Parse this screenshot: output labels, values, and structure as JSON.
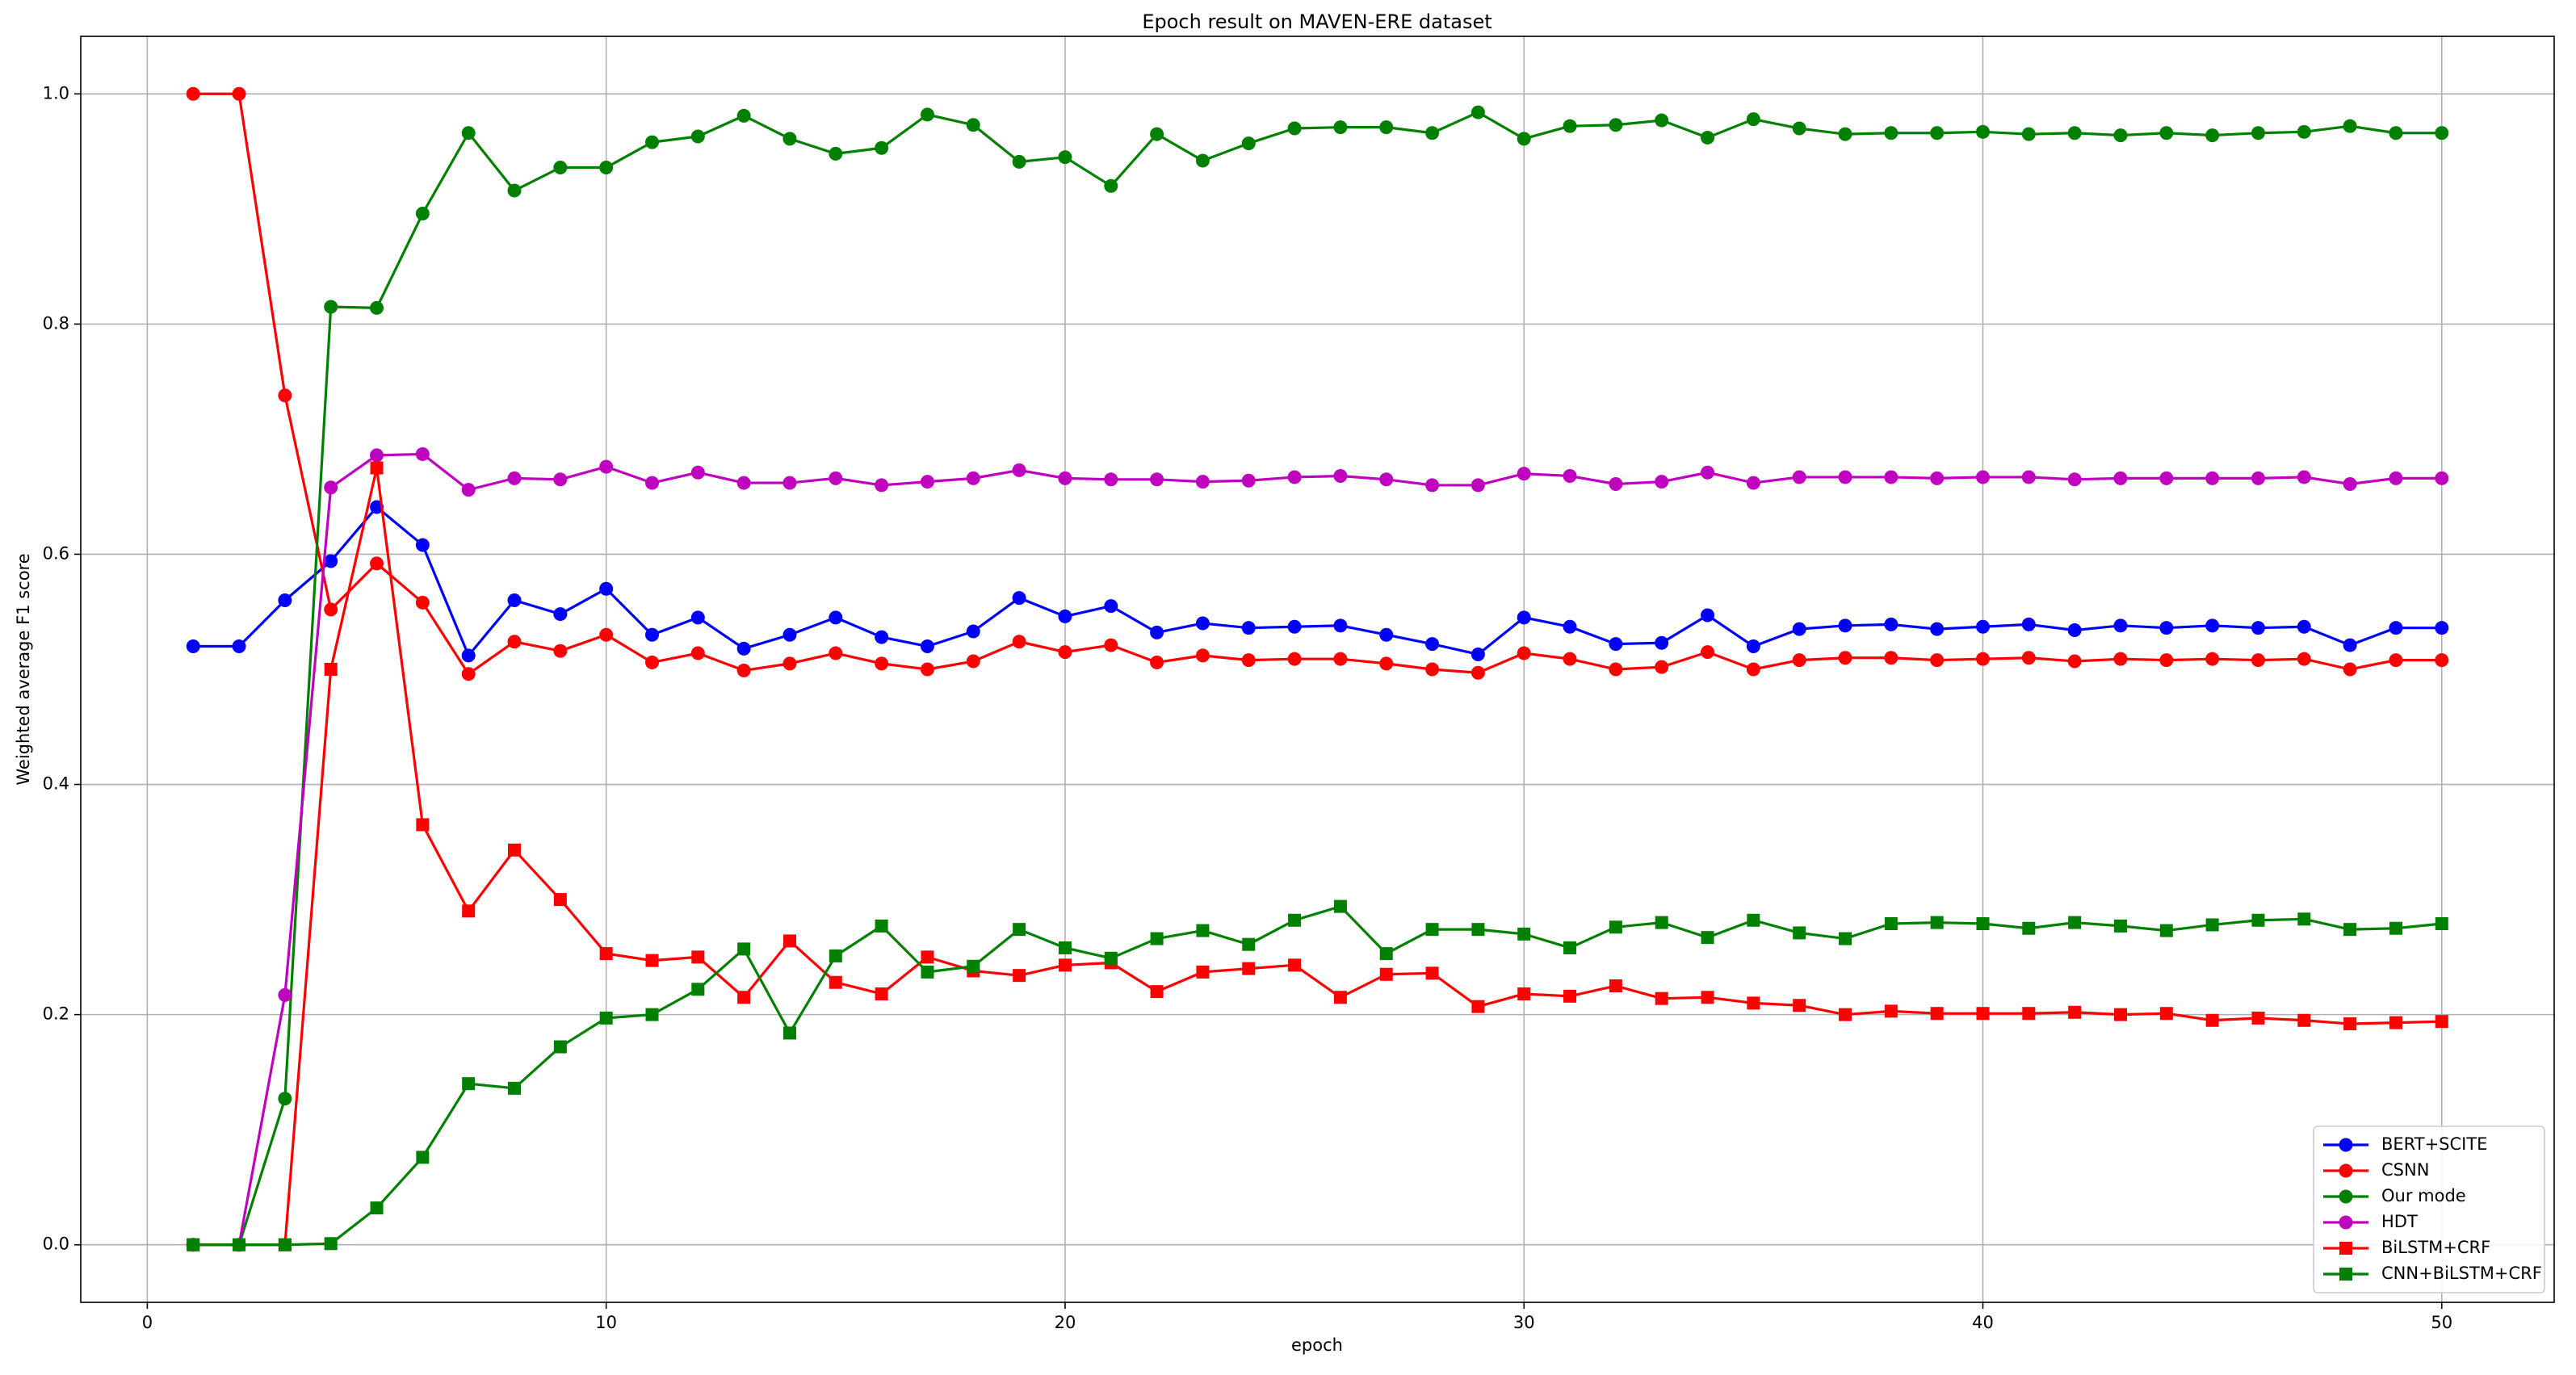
{
  "chart_data": {
    "type": "line",
    "title": "Epoch result on MAVEN-ERE dataset",
    "x_label": "epoch",
    "y_label": "Weighted average F1 score",
    "x": [
      1,
      2,
      3,
      4,
      5,
      6,
      7,
      8,
      9,
      10,
      11,
      12,
      13,
      14,
      15,
      16,
      17,
      18,
      19,
      20,
      21,
      22,
      23,
      24,
      25,
      26,
      27,
      28,
      29,
      30,
      31,
      32,
      33,
      34,
      35,
      36,
      37,
      38,
      39,
      40,
      41,
      42,
      43,
      44,
      45,
      46,
      47,
      48,
      49,
      50
    ],
    "series": [
      {
        "name": "BERT+SCITE",
        "color": "#0000ff",
        "marker": "circle",
        "values": [
          0.52,
          0.52,
          0.56,
          0.594,
          0.641,
          0.608,
          0.512,
          0.56,
          0.548,
          0.57,
          0.53,
          0.545,
          0.518,
          0.53,
          0.545,
          0.528,
          0.52,
          0.533,
          0.562,
          0.546,
          0.555,
          0.532,
          0.54,
          0.536,
          0.537,
          0.538,
          0.53,
          0.522,
          0.513,
          0.545,
          0.537,
          0.522,
          0.523,
          0.547,
          0.52,
          0.535,
          0.538,
          0.539,
          0.535,
          0.537,
          0.539,
          0.534,
          0.538,
          0.536,
          0.538,
          0.536,
          0.537,
          0.521,
          0.536,
          0.536
        ]
      },
      {
        "name": "CSNN",
        "color": "#ff0000",
        "marker": "circle",
        "values": [
          1.0,
          1.0,
          0.738,
          0.552,
          0.592,
          0.558,
          0.496,
          0.524,
          0.516,
          0.53,
          0.506,
          0.514,
          0.499,
          0.505,
          0.514,
          0.505,
          0.5,
          0.507,
          0.524,
          0.515,
          0.521,
          0.506,
          0.512,
          0.508,
          0.509,
          0.509,
          0.505,
          0.5,
          0.497,
          0.514,
          0.509,
          0.5,
          0.502,
          0.515,
          0.5,
          0.508,
          0.51,
          0.51,
          0.508,
          0.509,
          0.51,
          0.507,
          0.509,
          0.508,
          0.509,
          0.508,
          0.509,
          0.5,
          0.508,
          0.508
        ]
      },
      {
        "name": "Our mode",
        "color": "#008000",
        "marker": "circle",
        "values": [
          0,
          0,
          0.127,
          0.815,
          0.814,
          0.896,
          0.966,
          0.916,
          0.936,
          0.936,
          0.958,
          0.963,
          0.981,
          0.961,
          0.948,
          0.953,
          0.982,
          0.973,
          0.941,
          0.945,
          0.92,
          0.965,
          0.942,
          0.957,
          0.97,
          0.971,
          0.971,
          0.966,
          0.984,
          0.961,
          0.972,
          0.973,
          0.977,
          0.962,
          0.978,
          0.97,
          0.965,
          0.966,
          0.966,
          0.967,
          0.965,
          0.966,
          0.964,
          0.966,
          0.964,
          0.966,
          0.967,
          0.972,
          0.966,
          0.966
        ]
      },
      {
        "name": "HDT",
        "color": "#bf00bf",
        "marker": "circle",
        "values": [
          0,
          0,
          0.217,
          0.658,
          0.686,
          0.687,
          0.656,
          0.666,
          0.665,
          0.676,
          0.662,
          0.671,
          0.662,
          0.662,
          0.666,
          0.66,
          0.663,
          0.666,
          0.673,
          0.666,
          0.665,
          0.665,
          0.663,
          0.664,
          0.667,
          0.668,
          0.665,
          0.66,
          0.66,
          0.67,
          0.668,
          0.661,
          0.663,
          0.671,
          0.662,
          0.667,
          0.667,
          0.667,
          0.666,
          0.667,
          0.667,
          0.665,
          0.666,
          0.666,
          0.666,
          0.666,
          0.667,
          0.661,
          0.666,
          0.666
        ]
      },
      {
        "name": "BiLSTM+CRF",
        "color": "#ff0000",
        "marker": "square",
        "values": [
          0,
          0,
          0,
          0.5,
          0.675,
          0.365,
          0.29,
          0.343,
          0.3,
          0.253,
          0.247,
          0.25,
          0.215,
          0.264,
          0.228,
          0.218,
          0.25,
          0.238,
          0.234,
          0.243,
          0.245,
          0.22,
          0.237,
          0.24,
          0.243,
          0.215,
          0.235,
          0.236,
          0.207,
          0.218,
          0.216,
          0.225,
          0.214,
          0.215,
          0.21,
          0.208,
          0.2,
          0.203,
          0.201,
          0.201,
          0.201,
          0.202,
          0.2,
          0.201,
          0.195,
          0.197,
          0.195,
          0.192,
          0.193,
          0.194
        ]
      },
      {
        "name": "CNN+BiLSTM+CRF",
        "color": "#008000",
        "marker": "square",
        "values": [
          0,
          0,
          0,
          0.001,
          0.032,
          0.076,
          0.14,
          0.136,
          0.172,
          0.197,
          0.2,
          0.222,
          0.257,
          0.184,
          0.251,
          0.277,
          0.237,
          0.242,
          0.274,
          0.258,
          0.249,
          0.266,
          0.273,
          0.261,
          0.282,
          0.294,
          0.253,
          0.274,
          0.274,
          0.27,
          0.258,
          0.276,
          0.28,
          0.267,
          0.282,
          0.271,
          0.266,
          0.279,
          0.28,
          0.279,
          0.275,
          0.28,
          0.277,
          0.273,
          0.278,
          0.282,
          0.283,
          0.274,
          0.275,
          0.279
        ]
      }
    ],
    "xlim": [
      -1.45,
      52.45
    ],
    "ylim": [
      -0.05,
      1.05
    ],
    "xticks": [
      0,
      10,
      20,
      30,
      40,
      50
    ],
    "yticks": [
      {
        "value": 0,
        "label": "0.0"
      },
      0.2,
      0.4,
      0.6,
      0.8,
      {
        "value": 1,
        "label": "1.0"
      }
    ],
    "grid": true,
    "legend": "lower right"
  }
}
